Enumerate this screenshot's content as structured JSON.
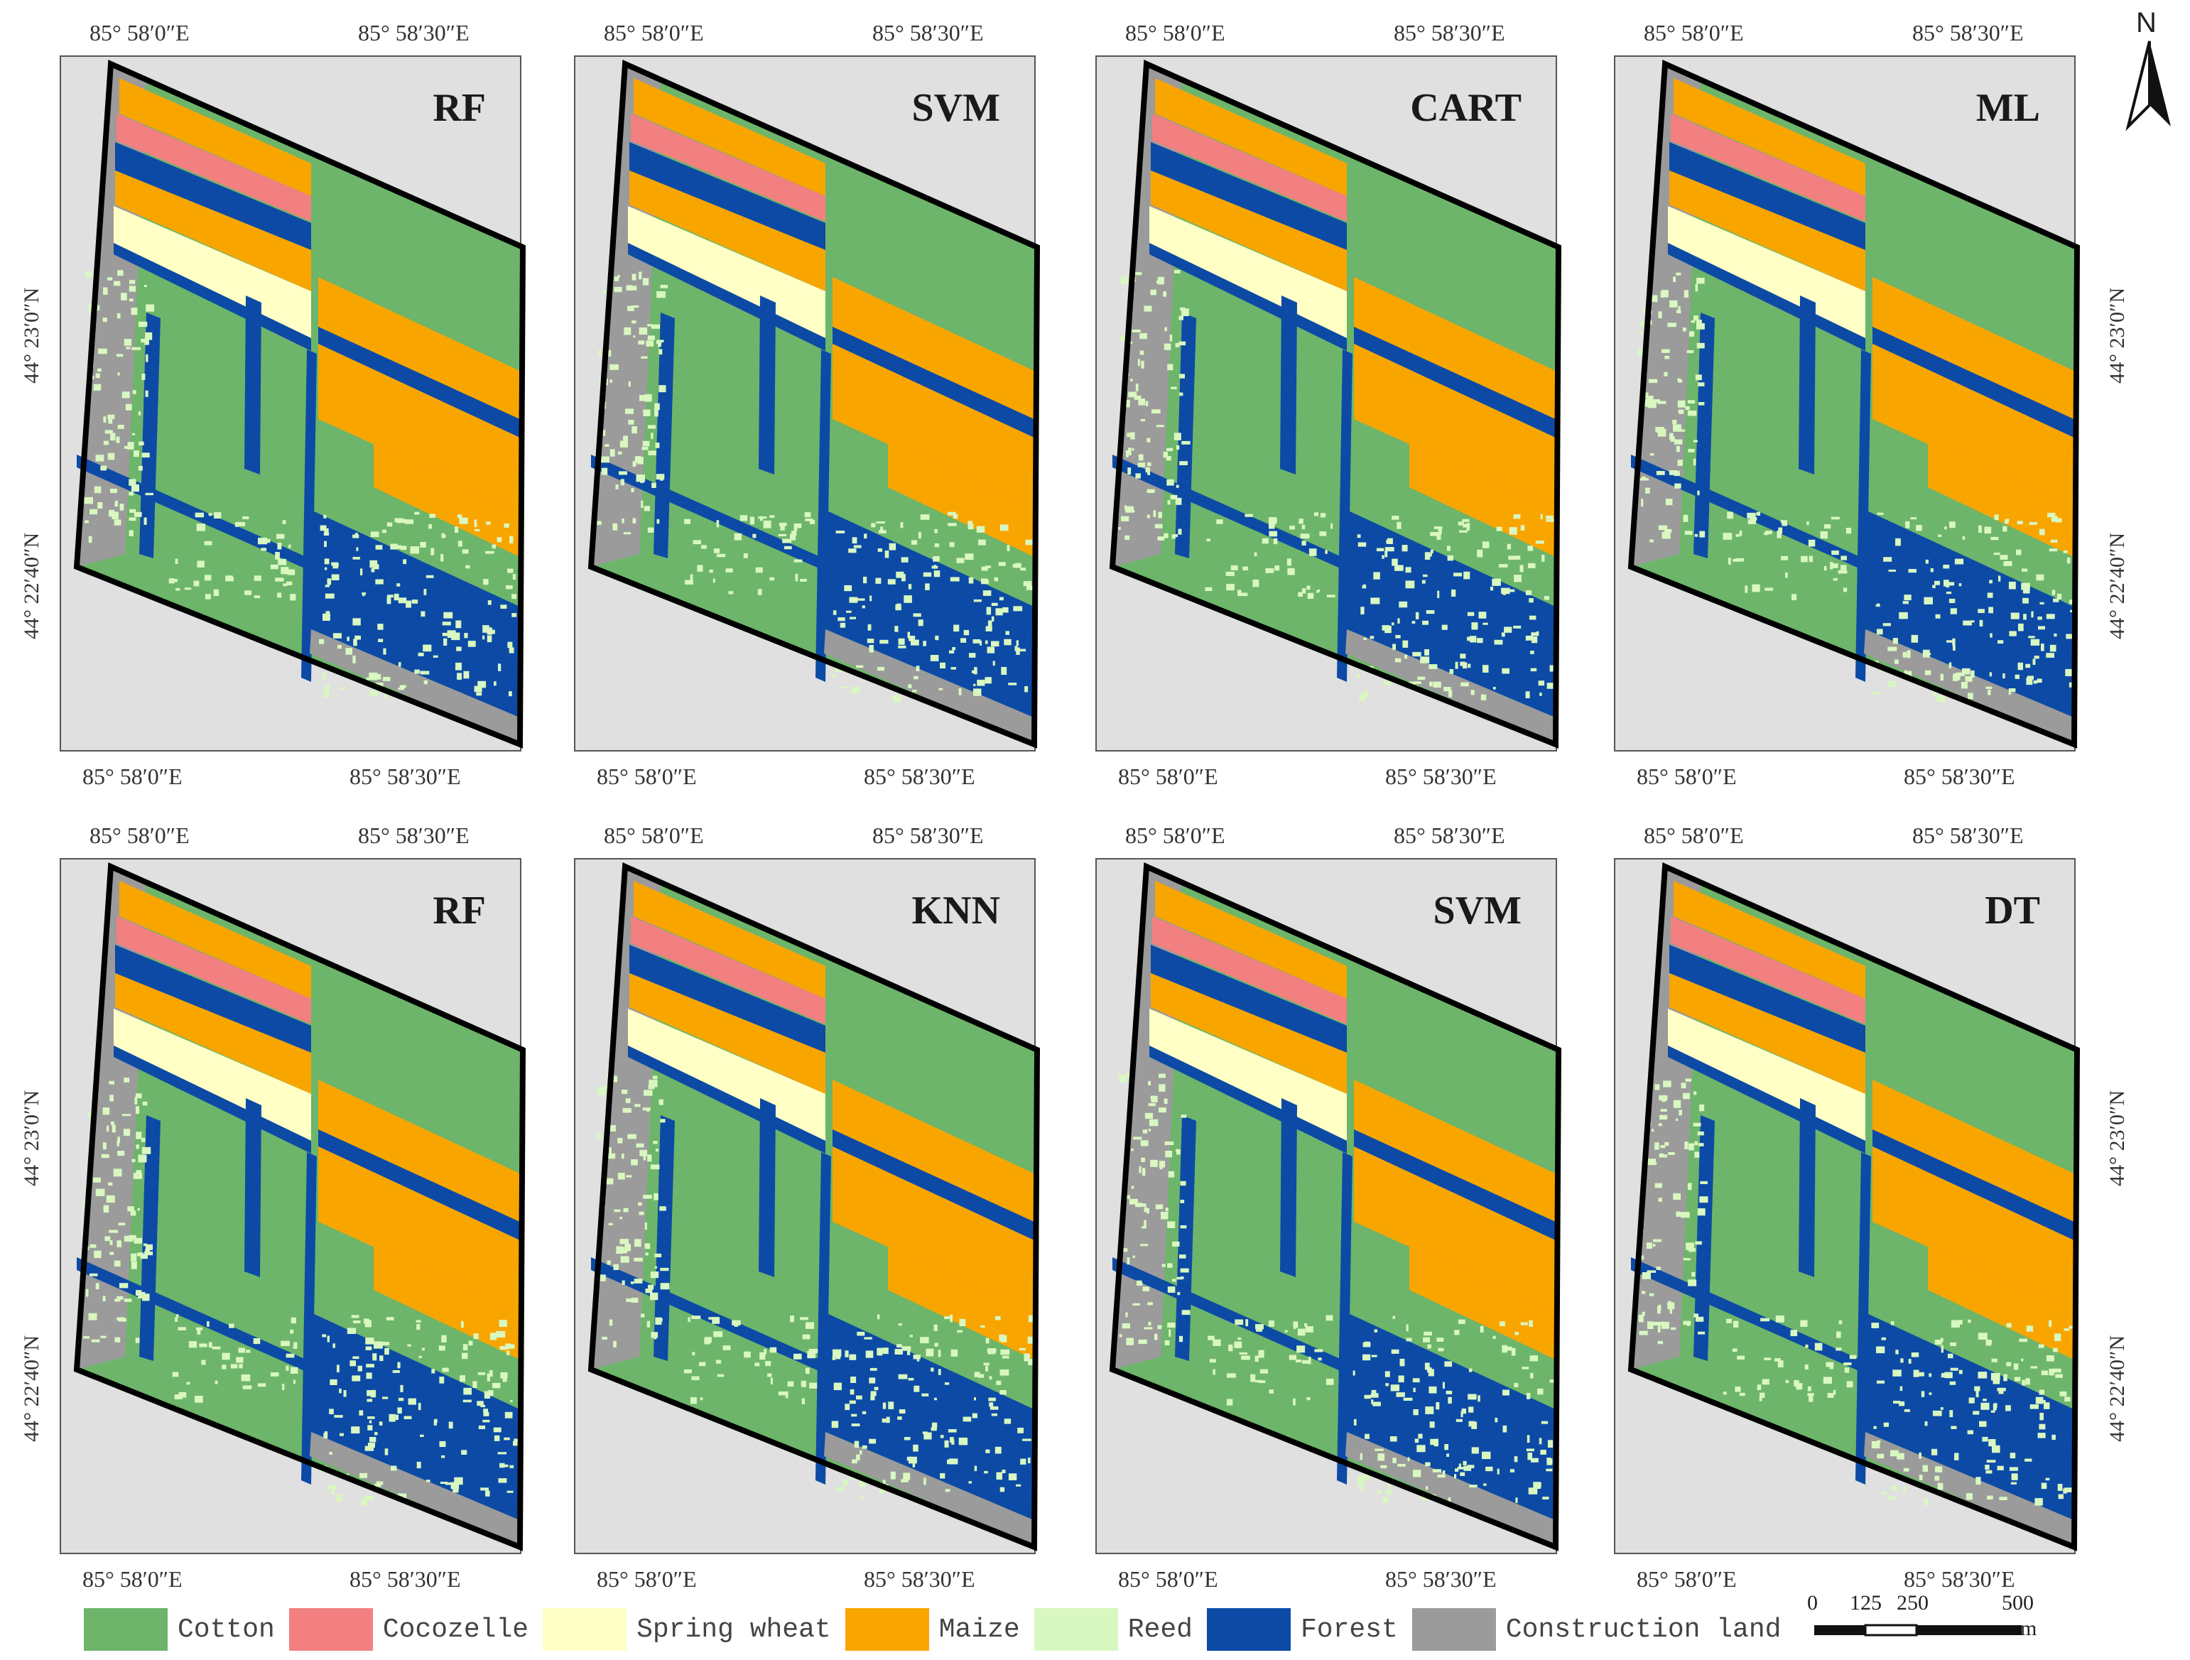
{
  "colors": {
    "cotton": "#6db56a",
    "cocozelle": "#f28080",
    "spring_wheat": "#ffffc6",
    "maize": "#f9a500",
    "reed": "#d9f7c0",
    "forest": "#0c4aa6",
    "construction": "#9b9b9b",
    "background": "#e0e0e0"
  },
  "coords": {
    "lon_west": "85° 58′0″E",
    "lon_east": "85° 58′30″E",
    "lat_north": "44° 23′0″N",
    "lat_south": "44° 22′40″N"
  },
  "panels": [
    {
      "method": "RF"
    },
    {
      "method": "SVM"
    },
    {
      "method": "CART"
    },
    {
      "method": "ML"
    },
    {
      "method": "RF"
    },
    {
      "method": "KNN"
    },
    {
      "method": "SVM"
    },
    {
      "method": "DT"
    }
  ],
  "legend": [
    {
      "label": "Cotton",
      "color": "#6db56a"
    },
    {
      "label": "Cocozelle",
      "color": "#f28080"
    },
    {
      "label": "Spring wheat",
      "color": "#ffffc6"
    },
    {
      "label": "Maize",
      "color": "#f9a500"
    },
    {
      "label": "Reed",
      "color": "#d9f7c0"
    },
    {
      "label": "Forest",
      "color": "#0c4aa6"
    },
    {
      "label": "Construction land",
      "color": "#9b9b9b"
    }
  ],
  "north_arrow": {
    "label": "N",
    "icon": "north-arrow-icon"
  },
  "scale_bar": {
    "ticks": [
      "0",
      "125",
      "250",
      "500"
    ],
    "unit": "m"
  }
}
